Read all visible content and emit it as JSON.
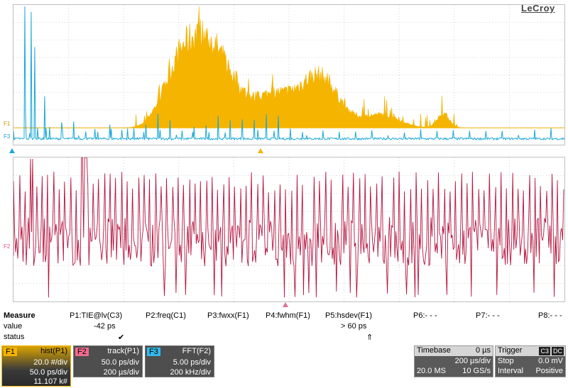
{
  "brand": "LeCroy",
  "trace_tags": {
    "f1": "F1",
    "f3": "F3",
    "f2": "F2"
  },
  "colors": {
    "hist": "#f5b400",
    "fft": "#1aa7d8",
    "track": "#b5143e",
    "grid": "#d0d0d0"
  },
  "measure": {
    "row_labels": [
      "Measure",
      "value",
      "status"
    ],
    "params": [
      {
        "label": "P1:TIE@lv(C3)",
        "value": "-42 ps",
        "status": "✔"
      },
      {
        "label": "P2:freq(C1)",
        "value": "",
        "status": ""
      },
      {
        "label": "P3:fwxx(F1)",
        "value": "",
        "status": ""
      },
      {
        "label": "P4:fwhm(F1)",
        "value": "",
        "status": ""
      },
      {
        "label": "P5:hsdev(F1)",
        "value": "> 60 ps",
        "status": "⇑"
      },
      {
        "label": "P6:- - -",
        "value": "",
        "status": ""
      },
      {
        "label": "P7:- - -",
        "value": "",
        "status": ""
      },
      {
        "label": "P8:- - -",
        "value": "",
        "status": ""
      }
    ]
  },
  "functions": [
    {
      "tag": "F1",
      "title": "hist(P1)",
      "rows": [
        "20.0 #/div",
        "50.0 ps/div",
        "11.107 k#"
      ]
    },
    {
      "tag": "F2",
      "title": "track(P1)",
      "rows": [
        "50.0 ps/div",
        "200 µs/div"
      ]
    },
    {
      "tag": "F3",
      "title": "FFT(F2)",
      "rows": [
        "5.00 ps/div",
        "200 kHz/div"
      ]
    }
  ],
  "timebase": {
    "label": "Timebase",
    "delay": "0 µs",
    "per_div": "200 µs/div",
    "samples": "20.0 MS",
    "rate": "10 GS/s"
  },
  "trigger": {
    "label": "Trigger",
    "ch": "C3",
    "coupling": "DC",
    "mode": "Stop",
    "level": "0.0 mV",
    "type": "Interval",
    "slope": "Positive"
  }
}
